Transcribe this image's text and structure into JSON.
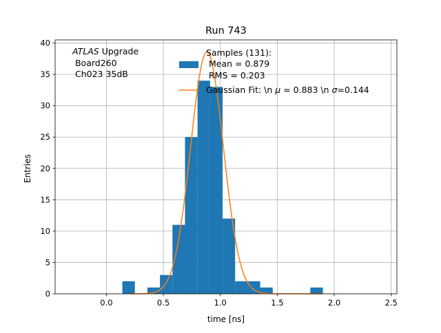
{
  "chart_data": {
    "type": "bar",
    "title": "Run 743",
    "xlabel": "time [ns]",
    "ylabel": "Entries",
    "xlim": [
      -0.45,
      2.55
    ],
    "ylim": [
      0,
      40.5
    ],
    "x_ticks": [
      0.0,
      0.5,
      1.0,
      1.5,
      2.0,
      2.5
    ],
    "x_tick_labels": [
      "0.0",
      "0.5",
      "1.0",
      "1.5",
      "2.0",
      "2.5"
    ],
    "y_ticks": [
      0,
      5,
      10,
      15,
      20,
      25,
      30,
      35,
      40
    ],
    "y_tick_labels": [
      "0",
      "5",
      "10",
      "15",
      "20",
      "25",
      "30",
      "35",
      "40"
    ],
    "grid": true,
    "histogram": {
      "bin_edges": [
        0.14,
        0.25,
        0.36,
        0.47,
        0.58,
        0.69,
        0.8,
        0.91,
        1.02,
        1.13,
        1.24,
        1.35,
        1.46,
        1.57,
        1.68,
        1.79,
        1.9
      ],
      "counts": [
        2,
        0,
        1,
        3,
        11,
        25,
        34,
        33,
        12,
        2,
        2,
        1,
        0,
        0,
        0,
        1
      ],
      "color": "#1f77b4"
    },
    "gaussian_fit": {
      "mu": 0.883,
      "sigma": 0.144,
      "amplitude": 38.6,
      "x_range": [
        0.2,
        1.9
      ],
      "color": "#ff7f0e"
    },
    "annotation": {
      "line1_italic": "ATLAS",
      "line1_rest": " Upgrade",
      "line2": " Board260",
      "line3": " Ch023 35dB"
    },
    "legend": {
      "placement": "top-right",
      "hist_lines": [
        "Samples (131):",
        "Mean = 0.879",
        "RMS = 0.203"
      ],
      "fit_label_parts": [
        "Gaussian Fit: \\n ",
        "μ",
        " = 0.883 \\n ",
        "σ",
        "=0.144"
      ]
    }
  }
}
